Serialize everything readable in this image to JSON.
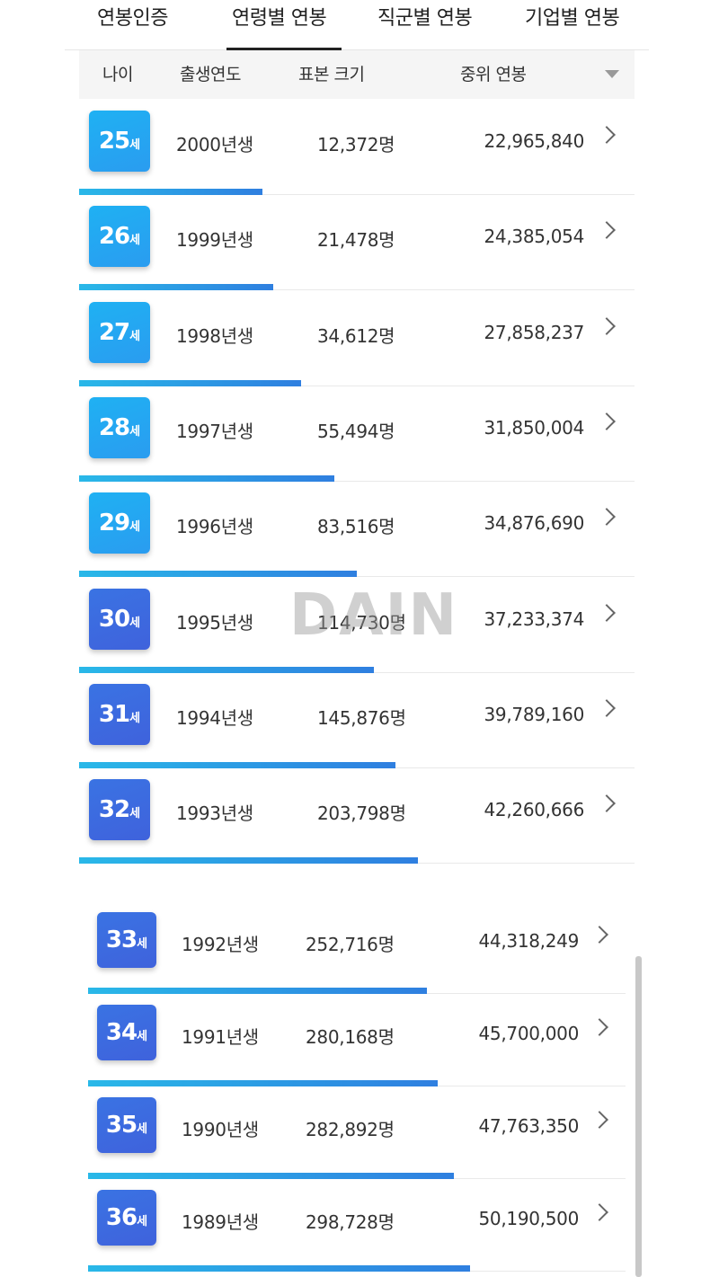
{
  "tabs": [
    {
      "label": "연봉인증"
    },
    {
      "label": "연령별 연봉"
    },
    {
      "label": "직군별 연봉"
    },
    {
      "label": "기업별 연봉"
    }
  ],
  "header": {
    "age": "나이",
    "birth_year": "출생연도",
    "sample_size": "표본 크기",
    "median_salary": "중위 연봉"
  },
  "watermark": "DAIN",
  "age_unit": "세",
  "rows": [
    {
      "age": "25",
      "birth": "2000년생",
      "sample": "12,372명",
      "salary": "22,965,840",
      "bar_fraction": 0.33
    },
    {
      "age": "26",
      "birth": "1999년생",
      "sample": "21,478명",
      "salary": "24,385,054",
      "bar_fraction": 0.35
    },
    {
      "age": "27",
      "birth": "1998년생",
      "sample": "34,612명",
      "salary": "27,858,237",
      "bar_fraction": 0.4
    },
    {
      "age": "28",
      "birth": "1997년생",
      "sample": "55,494명",
      "salary": "31,850,004",
      "bar_fraction": 0.46
    },
    {
      "age": "29",
      "birth": "1996년생",
      "sample": "83,516명",
      "salary": "34,876,690",
      "bar_fraction": 0.5
    },
    {
      "age": "30",
      "birth": "1995년생",
      "sample": "114,730명",
      "salary": "37,233,374",
      "bar_fraction": 0.53
    },
    {
      "age": "31",
      "birth": "1994년생",
      "sample": "145,876명",
      "salary": "39,789,160",
      "bar_fraction": 0.57
    },
    {
      "age": "32",
      "birth": "1993년생",
      "sample": "203,798명",
      "salary": "42,260,666",
      "bar_fraction": 0.61
    },
    {
      "age": "33",
      "birth": "1992년생",
      "sample": "252,716명",
      "salary": "44,318,249",
      "bar_fraction": 0.63
    },
    {
      "age": "34",
      "birth": "1991년생",
      "sample": "280,168명",
      "salary": "45,700,000",
      "bar_fraction": 0.65
    },
    {
      "age": "35",
      "birth": "1990년생",
      "sample": "282,892명",
      "salary": "47,763,350",
      "bar_fraction": 0.68
    },
    {
      "age": "36",
      "birth": "1989년생",
      "sample": "298,728명",
      "salary": "50,190,500",
      "bar_fraction": 0.71
    }
  ],
  "colors": {
    "badge_young": "#1fb1f3",
    "badge_old": "#3a73e3",
    "bar_start": "#29b8e8",
    "bar_end": "#2f7fe0"
  }
}
